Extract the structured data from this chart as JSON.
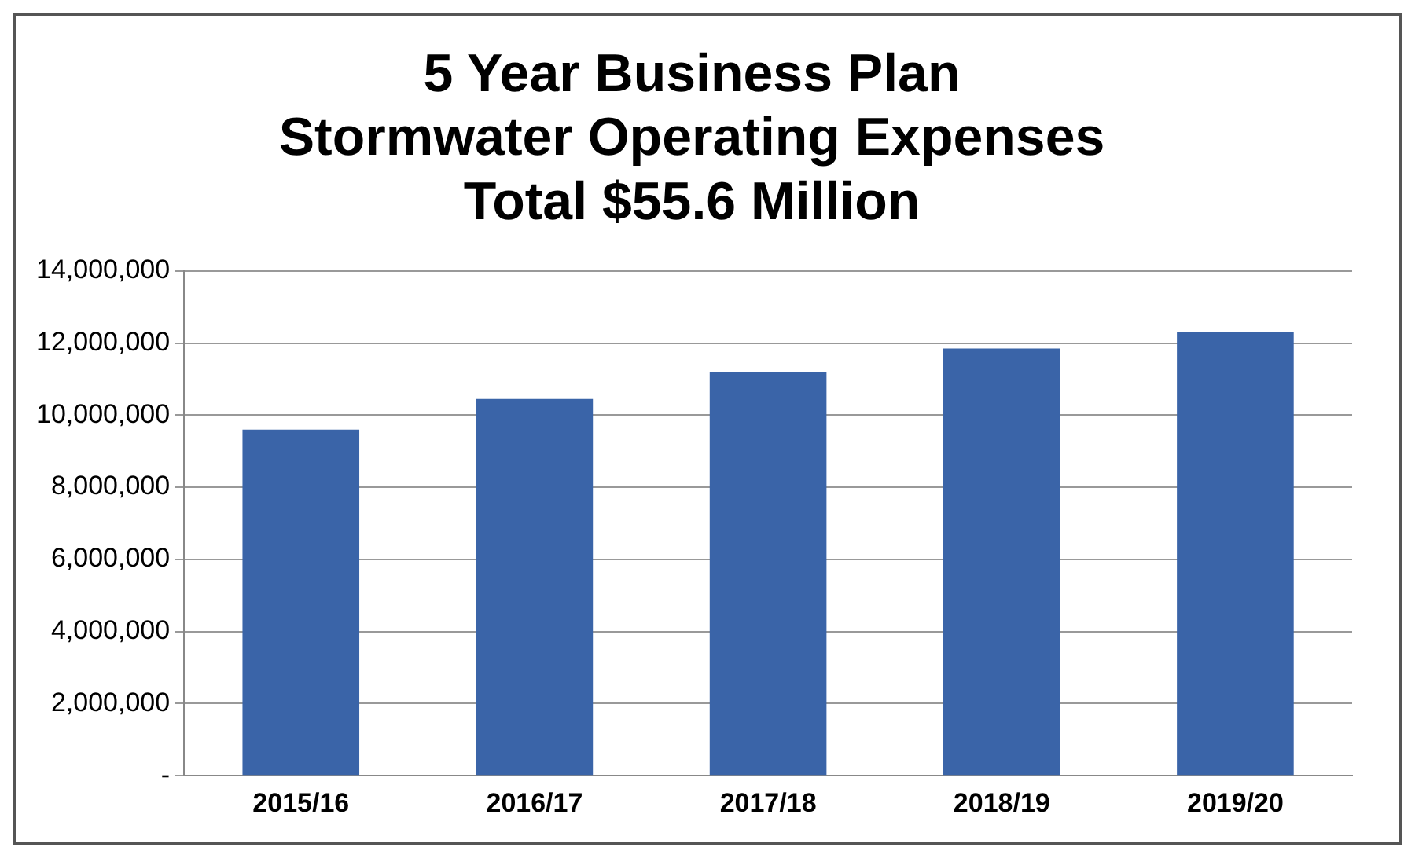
{
  "chart_data": {
    "type": "bar",
    "title": "5 Year Business Plan\nStormwater Operating Expenses\nTotal $55.6 Million",
    "categories": [
      "2015/16",
      "2016/17",
      "2017/18",
      "2018/19",
      "2019/20"
    ],
    "values": [
      9600000,
      10450000,
      11200000,
      11850000,
      12300000
    ],
    "color": "#3a64a8",
    "ylim": [
      0,
      14000000
    ],
    "yticks": [
      {
        "value": 0,
        "label": "-"
      },
      {
        "value": 2000000,
        "label": "2,000,000"
      },
      {
        "value": 4000000,
        "label": "4,000,000"
      },
      {
        "value": 6000000,
        "label": "6,000,000"
      },
      {
        "value": 8000000,
        "label": "8,000,000"
      },
      {
        "value": 10000000,
        "label": "10,000,000"
      },
      {
        "value": 12000000,
        "label": "12,000,000"
      },
      {
        "value": 14000000,
        "label": "14,000,000"
      }
    ],
    "grid": "y"
  }
}
